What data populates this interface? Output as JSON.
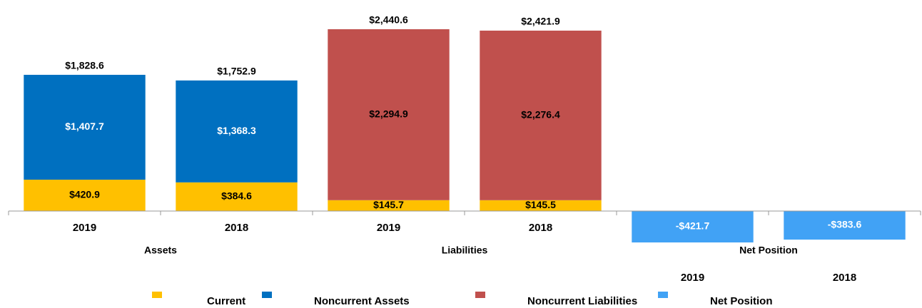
{
  "chart_data": {
    "type": "stacked_bar",
    "categories": [
      "2019",
      "2018",
      "2019",
      "2018",
      "2019",
      "2018"
    ],
    "groups": [
      "Assets",
      "Liabilities",
      "Net Position"
    ],
    "series": [
      {
        "name": "Current",
        "color": "#FFC000",
        "label_color": "#000000",
        "values": [
          420.9,
          384.6,
          145.7,
          145.5,
          null,
          null
        ],
        "value_labels": [
          "$420.9",
          "$384.6",
          "$145.7",
          "$145.5",
          null,
          null
        ]
      },
      {
        "name": "Noncurrent Assets",
        "color": "#0070C0",
        "label_color": "#FFFFFF",
        "values": [
          1407.7,
          1368.3,
          null,
          null,
          null,
          null
        ],
        "value_labels": [
          "$1,407.7",
          "$1,368.3",
          null,
          null,
          null,
          null
        ]
      },
      {
        "name": "Noncurrent Liabilities",
        "color": "#C0504D",
        "label_color": "#000000",
        "values": [
          null,
          null,
          2294.9,
          2276.4,
          null,
          null
        ],
        "value_labels": [
          null,
          null,
          "$2,294.9",
          "$2,276.4",
          null,
          null
        ]
      },
      {
        "name": "Net Position",
        "color": "#41A2F5",
        "label_color": "#FFFFFF",
        "values": [
          null,
          null,
          null,
          null,
          -421.7,
          -383.6
        ],
        "value_labels": [
          null,
          null,
          null,
          null,
          "-$421.7",
          "-$383.6"
        ]
      }
    ],
    "totals": [
      1828.6,
      1752.9,
      2440.6,
      2421.9,
      null,
      null
    ],
    "total_labels": [
      "$1,828.6",
      "$1,752.9",
      "$2,440.6",
      "$2,421.9",
      null,
      null
    ],
    "ylim": [
      -500,
      2500
    ]
  }
}
